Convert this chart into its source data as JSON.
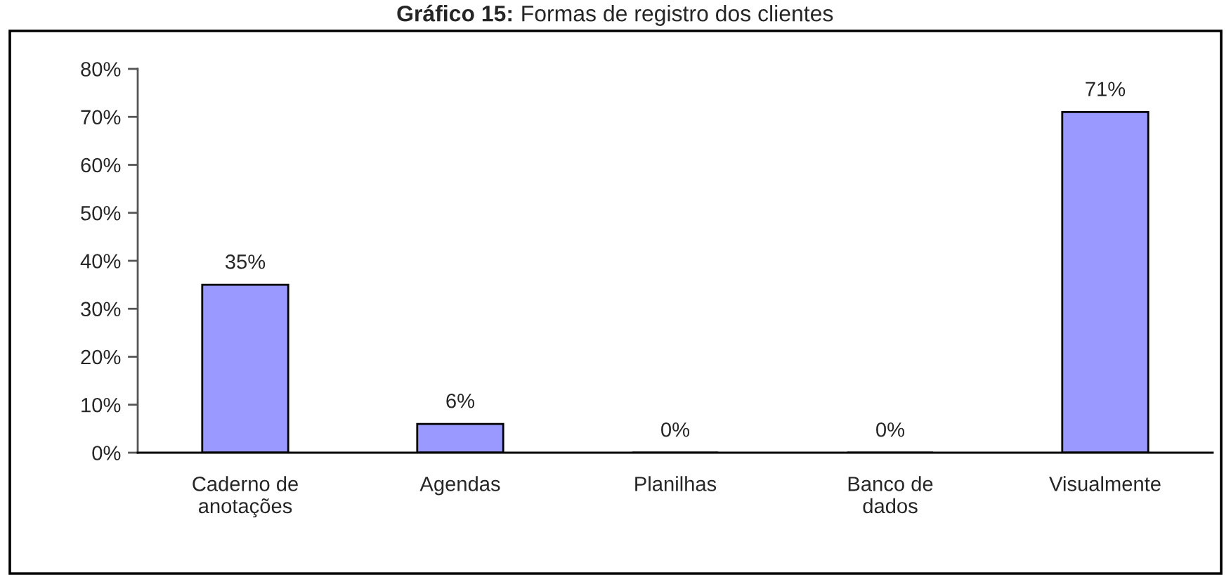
{
  "chart_data": {
    "type": "bar",
    "title": "Gráfico 15: Formas de registro dos clientes",
    "categories": [
      "Caderno de\nanotações",
      "Agendas",
      "Planilhas",
      "Banco de\ndados",
      "Visualmente"
    ],
    "values": [
      35,
      6,
      0,
      0,
      71
    ],
    "color": "#9999ff",
    "value_labels": [
      "35%",
      "6%",
      "0%",
      "0%",
      "71%"
    ],
    "ylim": [
      0,
      80
    ],
    "yticks": [
      {
        "value": 0,
        "label": "0%"
      },
      {
        "value": 10,
        "label": "10%"
      },
      {
        "value": 20,
        "label": "20%"
      },
      {
        "value": 30,
        "label": "30%"
      },
      {
        "value": 40,
        "label": "40%"
      },
      {
        "value": 50,
        "label": "50%"
      },
      {
        "value": 60,
        "label": "60%"
      },
      {
        "value": 70,
        "label": "70%"
      },
      {
        "value": 80,
        "label": "80%"
      }
    ]
  }
}
